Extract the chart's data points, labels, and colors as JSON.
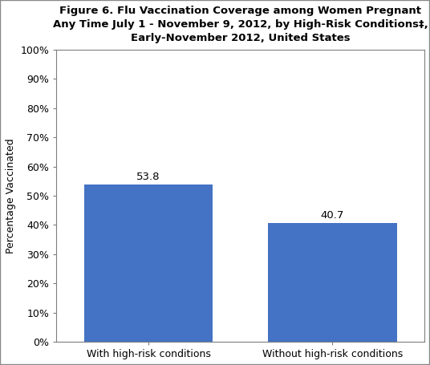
{
  "categories": [
    "With high-risk conditions",
    "Without high-risk conditions"
  ],
  "values": [
    53.8,
    40.7
  ],
  "bar_color": "#4472C4",
  "title_line1": "Figure 6. Flu Vaccination Coverage among Women Pregnant",
  "title_line2": "Any Time July 1 - November 9, 2012, by High-Risk Conditions‡,",
  "title_line3": "Early-November 2012, United States",
  "ylabel": "Percentage Vaccinated",
  "ylim": [
    0,
    100
  ],
  "yticks": [
    0,
    10,
    20,
    30,
    40,
    50,
    60,
    70,
    80,
    90,
    100
  ],
  "ytick_labels": [
    "0%",
    "10%",
    "20%",
    "30%",
    "40%",
    "50%",
    "60%",
    "70%",
    "80%",
    "90%",
    "100%"
  ],
  "bar_width": 0.35,
  "x_positions": [
    0.25,
    0.75
  ],
  "xlim": [
    0,
    1.0
  ],
  "title_fontsize": 9.5,
  "axis_label_fontsize": 9,
  "tick_label_fontsize": 9,
  "annotation_fontsize": 9.5,
  "background_color": "#ffffff",
  "border_color": "#7f7f7f"
}
